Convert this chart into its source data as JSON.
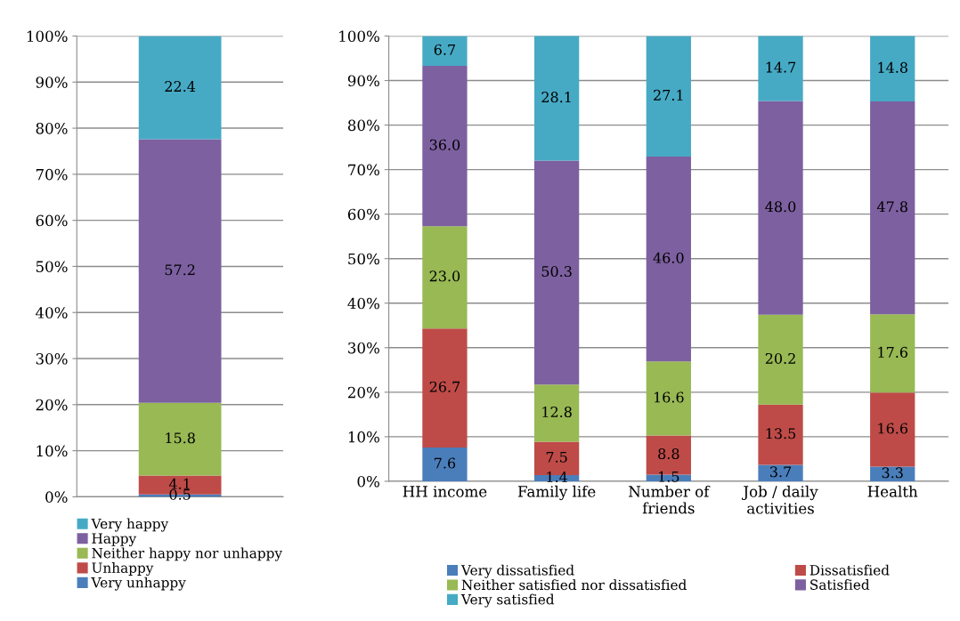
{
  "chart_data": [
    {
      "type": "bar",
      "stacked": true,
      "categories": [
        null
      ],
      "ylim": [
        0,
        100
      ],
      "yticks": [
        {
          "value": 0,
          "label": "0%"
        },
        {
          "value": 10,
          "label": "10%"
        },
        {
          "value": 20,
          "label": "20%"
        },
        {
          "value": 30,
          "label": "30%"
        },
        {
          "value": 40,
          "label": "40%"
        },
        {
          "value": 50,
          "label": "50%"
        },
        {
          "value": 60,
          "label": "60%"
        },
        {
          "value": 70,
          "label": "70%"
        },
        {
          "value": 80,
          "label": "80%"
        },
        {
          "value": 90,
          "label": "90%"
        },
        {
          "value": 100,
          "label": "100%"
        }
      ],
      "grid": "y",
      "legend": "bottom",
      "data_labels": true,
      "series": [
        {
          "name": "Very unhappy",
          "color": "#4a7ebb",
          "values": [
            0.5
          ]
        },
        {
          "name": "Unhappy",
          "color": "#be4b48",
          "values": [
            4.1
          ]
        },
        {
          "name": "Neither happy nor unhappy",
          "color": "#98b954",
          "values": [
            15.8
          ]
        },
        {
          "name": "Happy",
          "color": "#7d60a0",
          "values": [
            57.2
          ]
        },
        {
          "name": "Very happy",
          "color": "#46aac5",
          "values": [
            22.4
          ]
        }
      ]
    },
    {
      "type": "bar",
      "stacked": true,
      "categories": [
        "HH income",
        "Family life",
        "Number of\nfriends",
        "Job / daily\nactivities",
        "Health"
      ],
      "ylim": [
        0,
        100
      ],
      "yticks": [
        {
          "value": 0,
          "label": "0%"
        },
        {
          "value": 10,
          "label": "10%"
        },
        {
          "value": 20,
          "label": "20%"
        },
        {
          "value": 30,
          "label": "30%"
        },
        {
          "value": 40,
          "label": "40%"
        },
        {
          "value": 50,
          "label": "50%"
        },
        {
          "value": 60,
          "label": "60%"
        },
        {
          "value": 70,
          "label": "70%"
        },
        {
          "value": 80,
          "label": "80%"
        },
        {
          "value": 90,
          "label": "90%"
        },
        {
          "value": 100,
          "label": "100%"
        }
      ],
      "grid": "y",
      "legend": "bottom",
      "series": [
        {
          "name": "Very dissatisfied",
          "color": "#4a7ebb",
          "values": [
            7.6,
            1.4,
            1.5,
            3.7,
            3.3
          ],
          "value_labels": [
            "7.6",
            "1.4",
            "1.5",
            "3.7",
            "3.3"
          ]
        },
        {
          "name": "Dissatisfied",
          "color": "#be4b48",
          "values": [
            26.7,
            7.5,
            8.8,
            13.5,
            16.6
          ],
          "value_labels": [
            "26.7",
            "7.5",
            "8.8",
            "13.5",
            "16.6"
          ]
        },
        {
          "name": "Neither satisfied nor dissatisfied",
          "color": "#98b954",
          "values": [
            23.0,
            12.8,
            16.6,
            20.2,
            17.6
          ],
          "value_labels": [
            "23.0",
            "12.8",
            "16.6",
            "20.2",
            "17.6"
          ]
        },
        {
          "name": "Satisfied",
          "color": "#7d60a0",
          "values": [
            36.0,
            50.3,
            46.0,
            48.0,
            47.8
          ],
          "value_labels": [
            "36.0",
            "50.3",
            "46.0",
            "48.0",
            "47.8"
          ]
        },
        {
          "name": "Very satisfied",
          "color": "#46aac5",
          "values": [
            6.7,
            28.1,
            27.1,
            14.7,
            14.8
          ],
          "value_labels": [
            "6.7",
            "28.1",
            "27.1",
            "14.7",
            "14.8"
          ]
        }
      ]
    }
  ]
}
